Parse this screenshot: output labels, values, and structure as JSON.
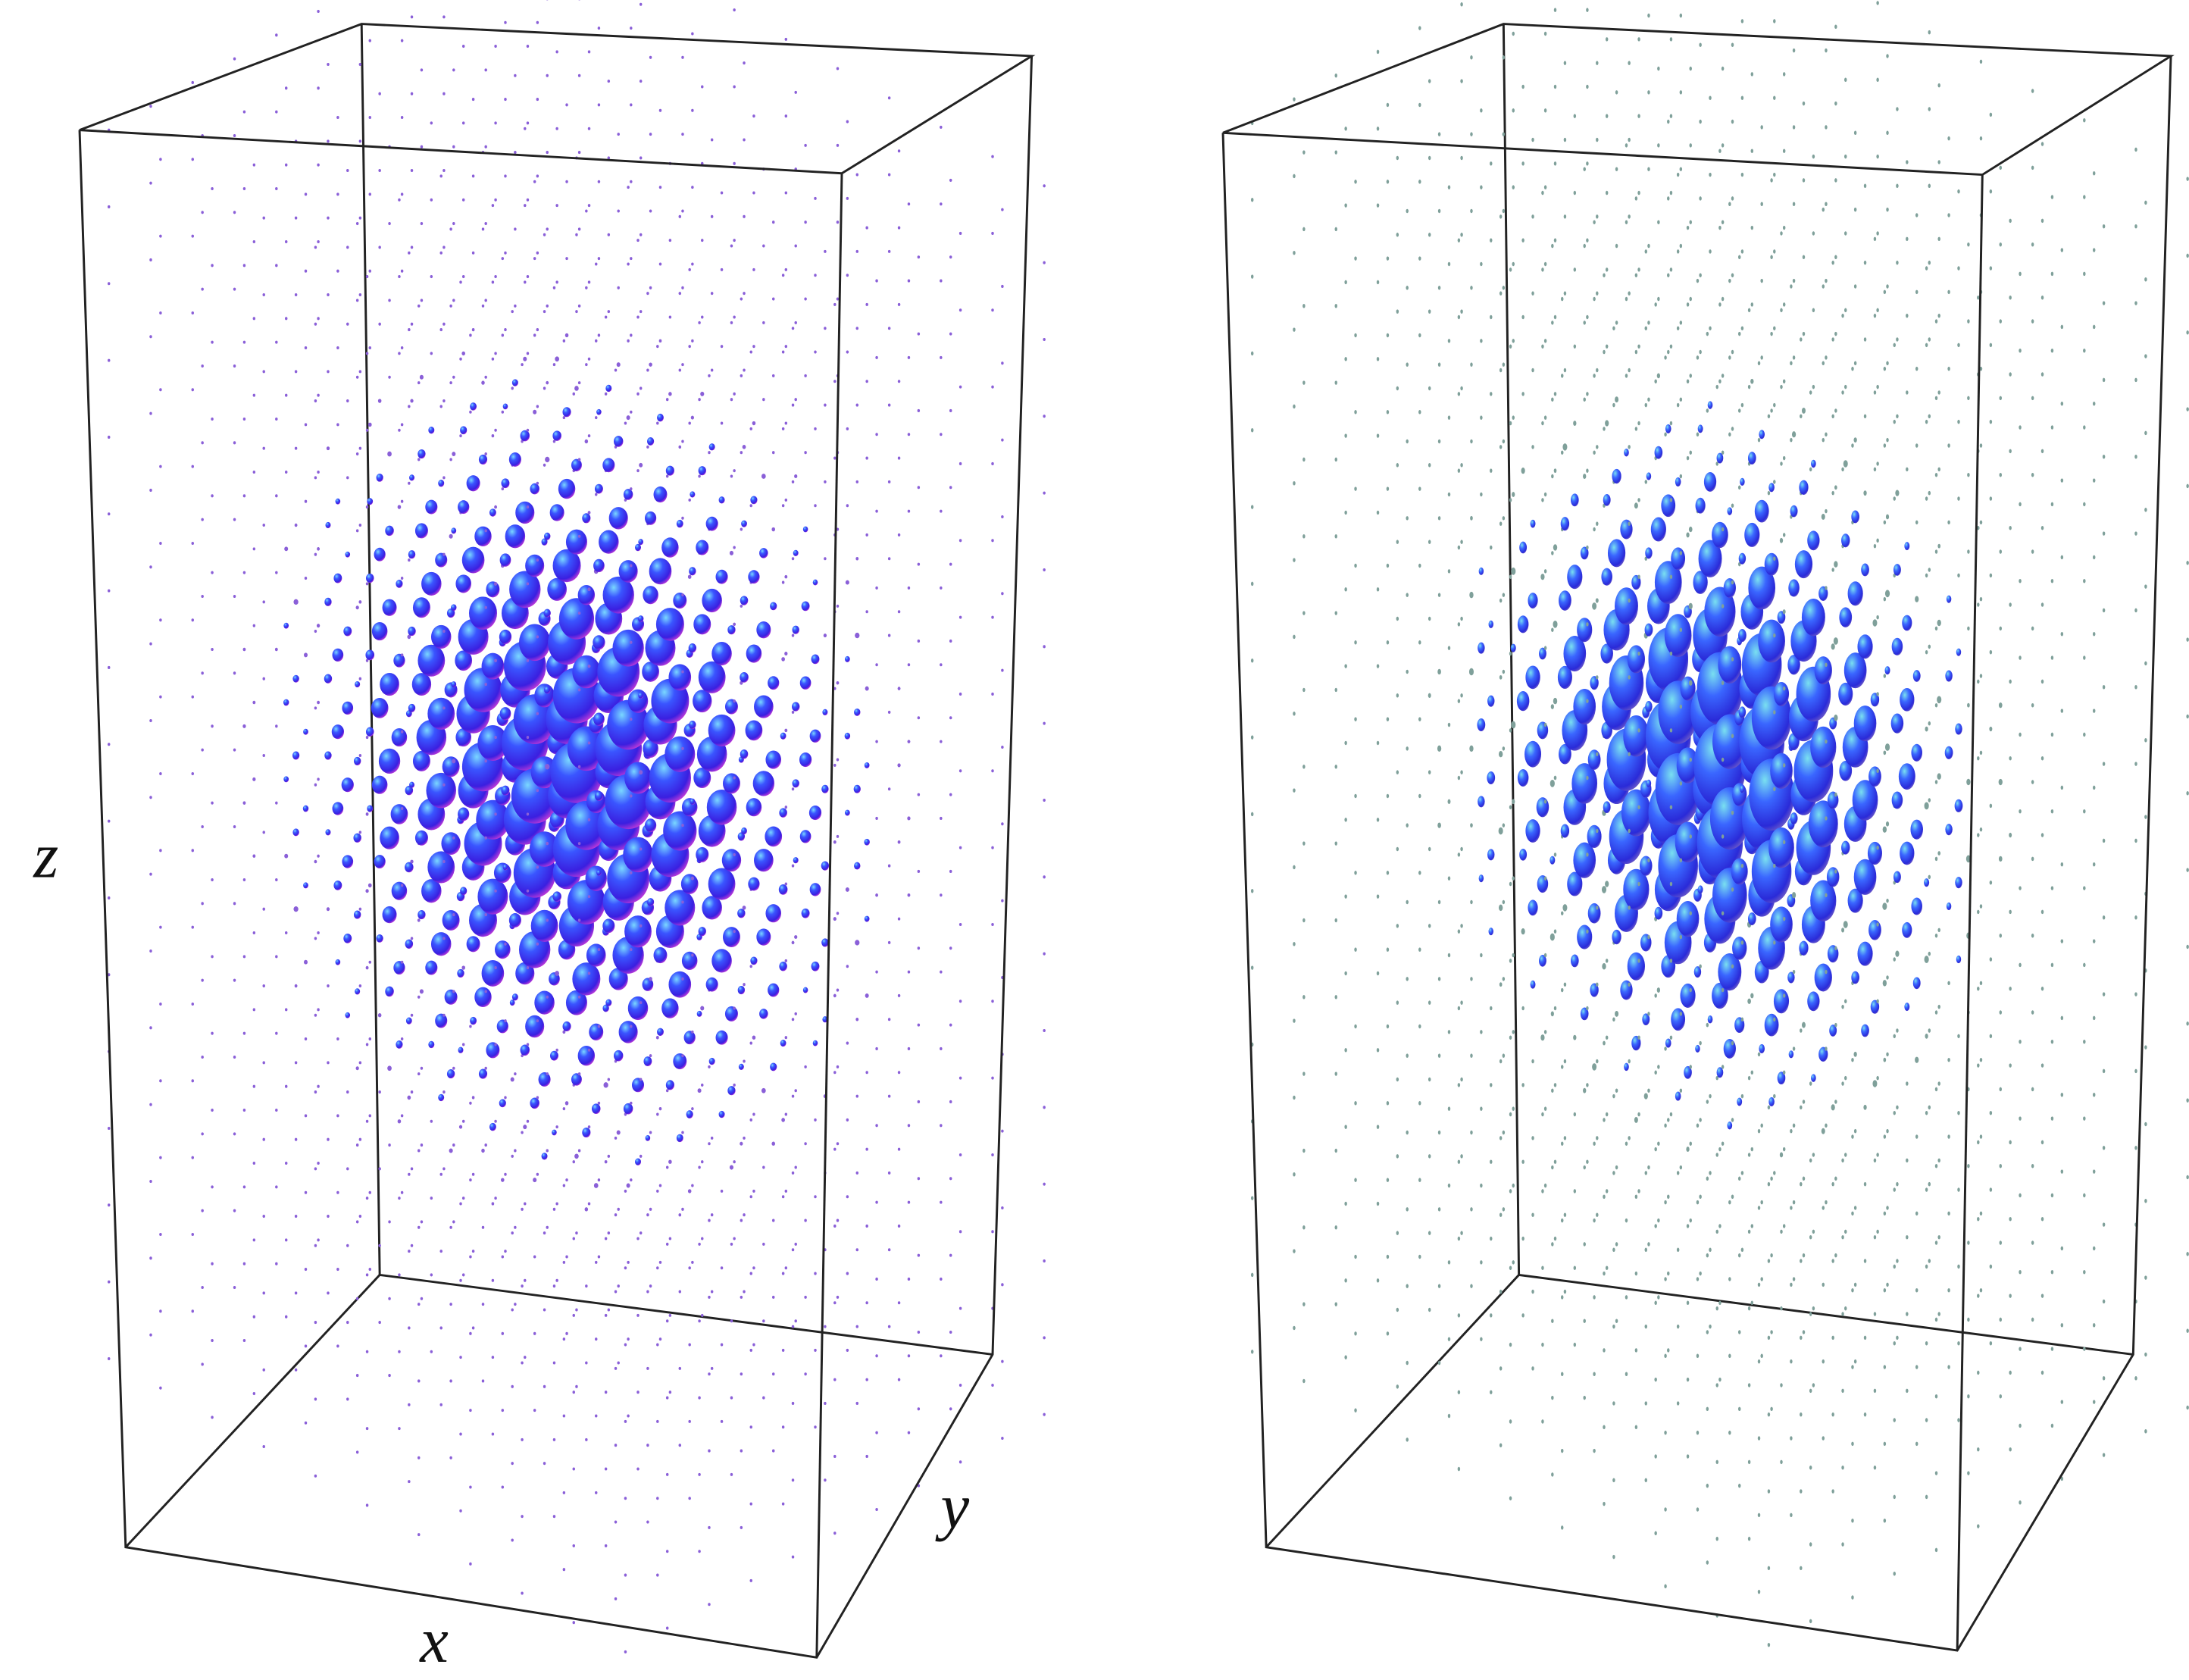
{
  "axis_labels": {
    "z": "z",
    "x": "x",
    "y": "y"
  }
}
